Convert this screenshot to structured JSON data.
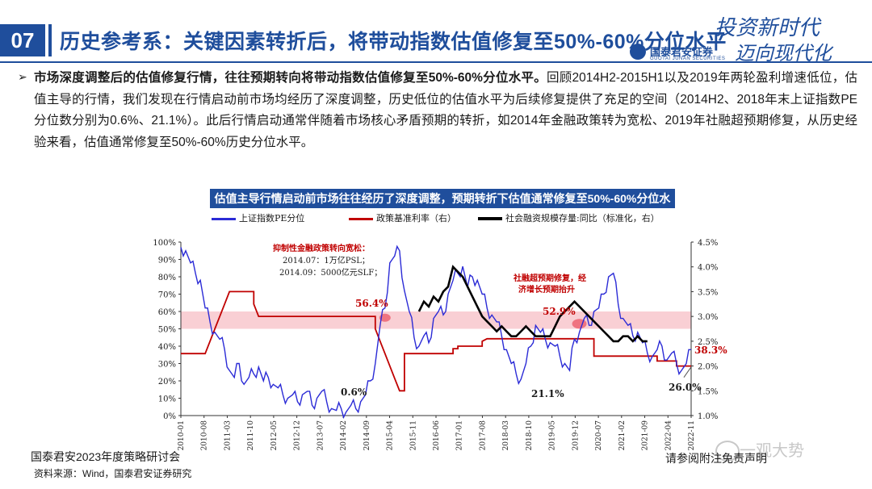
{
  "header": {
    "section_number": "07",
    "title": "历史参考系：关键因素转折后，将带动指数估值修复至50%-60%分位水平",
    "brand_cn": "国泰君安证券",
    "brand_en": "GUOTAI JUNAN SECURITIES",
    "slogan_line1": "投资新时代",
    "slogan_line2": "迈向现代化"
  },
  "bullet": {
    "bold_text": "市场深度调整后的估值修复行情，往往预期转向将带动指数估值修复至50%-60%分位水平。",
    "body_text": "回顾2014H2-2015H1以及2019年两轮盈利增速低位，估值主导的行情，我们发现在行情启动前市场均经历了深度调整，历史低位的估值水平为后续修复提供了充足的空间（2014H2、2018年末上证指数PE分位数分别为0.6%、21.1%）。此后行情启动通常伴随着市场核心矛盾预期的转折，如2014年金融政策转为宽松、2019年社融超预期修复，从历史经验来看，估值通常修复至50%-60%历史分位水平。"
  },
  "chart_data": {
    "type": "line",
    "title": "估值主导行情启动前市场往往经历了深度调整，预期转折下估值通常修复至50%-60%分位水平",
    "legend": [
      "上证指数PE分位",
      "政策基准利率（右）",
      "社会融资规模存量:同比（标准化，右）"
    ],
    "colors": {
      "pe": "#2b2bd6",
      "rate": "#c00000",
      "social": "#000000",
      "band": "#f4a7b0",
      "highlight": "#e8374a"
    },
    "y_left": {
      "min": 0,
      "max": 100,
      "ticks": [
        "0%",
        "10%",
        "20%",
        "30%",
        "40%",
        "50%",
        "60%",
        "70%",
        "80%",
        "90%",
        "100%"
      ]
    },
    "y_right": {
      "min": 1.0,
      "max": 4.5,
      "ticks": [
        "1.0%",
        "1.5%",
        "2.0%",
        "2.5%",
        "3.0%",
        "3.5%",
        "4.0%",
        "4.5%"
      ]
    },
    "x_ticks": [
      "2010-01",
      "2010-08",
      "2011-03",
      "2011-10",
      "2012-05",
      "2012-12",
      "2013-07",
      "2014-02",
      "2014-09",
      "2015-04",
      "2015-11",
      "2016-06",
      "2017-01",
      "2017-08",
      "2018-03",
      "2018-10",
      "2019-05",
      "2019-12",
      "2020-07",
      "2021-02",
      "2021-09",
      "2022-04",
      "2022-11"
    ],
    "band": [
      50,
      60
    ],
    "pe_series": [
      [
        0,
        97
      ],
      [
        2,
        95
      ],
      [
        4,
        88
      ],
      [
        6,
        82
      ],
      [
        8,
        78
      ],
      [
        10,
        62
      ],
      [
        12,
        54
      ],
      [
        14,
        48
      ],
      [
        16,
        44
      ],
      [
        18,
        38
      ],
      [
        20,
        26
      ],
      [
        22,
        22
      ],
      [
        24,
        30
      ],
      [
        26,
        18
      ],
      [
        28,
        22
      ],
      [
        30,
        24
      ],
      [
        32,
        28
      ],
      [
        34,
        20
      ],
      [
        36,
        22
      ],
      [
        38,
        18
      ],
      [
        40,
        16
      ],
      [
        42,
        12
      ],
      [
        44,
        10
      ],
      [
        46,
        12
      ],
      [
        48,
        8
      ],
      [
        50,
        12
      ],
      [
        52,
        14
      ],
      [
        54,
        6
      ],
      [
        56,
        10
      ],
      [
        58,
        14
      ],
      [
        60,
        8
      ],
      [
        62,
        4
      ],
      [
        64,
        3
      ],
      [
        66,
        4
      ],
      [
        68,
        2
      ],
      [
        70,
        6
      ],
      [
        72,
        4
      ],
      [
        74,
        8
      ],
      [
        76,
        12
      ],
      [
        78,
        20
      ],
      [
        80,
        30
      ],
      [
        82,
        52
      ],
      [
        84,
        62
      ],
      [
        86,
        88
      ],
      [
        88,
        92
      ],
      [
        90,
        95
      ],
      [
        92,
        72
      ],
      [
        94,
        60
      ],
      [
        96,
        45
      ],
      [
        98,
        40
      ],
      [
        100,
        46
      ],
      [
        102,
        42
      ],
      [
        104,
        56
      ],
      [
        106,
        60
      ],
      [
        108,
        58
      ],
      [
        110,
        70
      ],
      [
        112,
        78
      ],
      [
        114,
        82
      ],
      [
        116,
        86
      ],
      [
        118,
        74
      ],
      [
        120,
        80
      ],
      [
        122,
        78
      ],
      [
        124,
        70
      ],
      [
        126,
        62
      ],
      [
        128,
        58
      ],
      [
        130,
        54
      ],
      [
        132,
        46
      ],
      [
        134,
        38
      ],
      [
        136,
        30
      ],
      [
        138,
        24
      ],
      [
        140,
        21
      ],
      [
        142,
        30
      ],
      [
        144,
        40
      ],
      [
        146,
        52
      ],
      [
        148,
        48
      ],
      [
        150,
        44
      ],
      [
        152,
        42
      ],
      [
        154,
        40
      ],
      [
        156,
        34
      ],
      [
        158,
        30
      ],
      [
        160,
        26
      ],
      [
        162,
        44
      ],
      [
        164,
        48
      ],
      [
        166,
        56
      ],
      [
        168,
        52
      ],
      [
        170,
        60
      ],
      [
        172,
        62
      ],
      [
        174,
        70
      ],
      [
        176,
        80
      ],
      [
        178,
        82
      ],
      [
        180,
        64
      ],
      [
        182,
        56
      ],
      [
        184,
        52
      ],
      [
        186,
        46
      ],
      [
        188,
        48
      ],
      [
        190,
        42
      ],
      [
        192,
        36
      ],
      [
        194,
        34
      ],
      [
        196,
        38
      ],
      [
        198,
        40
      ],
      [
        200,
        32
      ],
      [
        202,
        36
      ],
      [
        204,
        30
      ],
      [
        206,
        26
      ],
      [
        208,
        30
      ],
      [
        210,
        38
      ]
    ],
    "rate_series": [
      [
        0,
        2.25
      ],
      [
        10,
        2.25
      ],
      [
        12,
        2.5
      ],
      [
        14,
        2.75
      ],
      [
        16,
        3.0
      ],
      [
        18,
        3.25
      ],
      [
        20,
        3.5
      ],
      [
        30,
        3.5
      ],
      [
        30,
        3.25
      ],
      [
        32,
        3.0
      ],
      [
        54,
        3.0
      ],
      [
        56,
        3.0
      ],
      [
        80,
        3.0
      ],
      [
        80,
        2.75
      ],
      [
        82,
        2.5
      ],
      [
        84,
        2.25
      ],
      [
        86,
        2.0
      ],
      [
        88,
        1.75
      ],
      [
        90,
        1.5
      ],
      [
        92,
        1.5
      ],
      [
        92,
        2.25
      ],
      [
        96,
        2.25
      ],
      [
        112,
        2.25
      ],
      [
        112,
        2.35
      ],
      [
        114,
        2.35
      ],
      [
        114,
        2.4
      ],
      [
        124,
        2.4
      ],
      [
        124,
        2.5
      ],
      [
        126,
        2.55
      ],
      [
        170,
        2.55
      ],
      [
        170,
        2.2
      ],
      [
        196,
        2.2
      ],
      [
        196,
        2.1
      ],
      [
        204,
        2.1
      ],
      [
        204,
        2.0
      ],
      [
        210,
        2.0
      ]
    ],
    "social_series": [
      [
        98,
        3.1
      ],
      [
        100,
        3.3
      ],
      [
        102,
        3.2
      ],
      [
        104,
        3.4
      ],
      [
        106,
        3.3
      ],
      [
        108,
        3.5
      ],
      [
        110,
        3.6
      ],
      [
        112,
        4.0
      ],
      [
        114,
        3.9
      ],
      [
        116,
        3.8
      ],
      [
        118,
        3.6
      ],
      [
        120,
        3.4
      ],
      [
        122,
        3.2
      ],
      [
        124,
        3.0
      ],
      [
        126,
        2.9
      ],
      [
        128,
        2.8
      ],
      [
        130,
        2.7
      ],
      [
        132,
        2.8
      ],
      [
        134,
        2.7
      ],
      [
        136,
        2.6
      ],
      [
        138,
        2.6
      ],
      [
        140,
        2.7
      ],
      [
        142,
        2.8
      ],
      [
        144,
        2.7
      ],
      [
        146,
        2.6
      ],
      [
        148,
        2.6
      ],
      [
        150,
        2.6
      ],
      [
        152,
        2.6
      ],
      [
        154,
        2.8
      ],
      [
        156,
        3.0
      ],
      [
        158,
        3.1
      ],
      [
        160,
        3.2
      ],
      [
        162,
        3.3
      ],
      [
        164,
        3.2
      ],
      [
        166,
        3.1
      ],
      [
        168,
        3.0
      ],
      [
        170,
        2.9
      ],
      [
        172,
        2.8
      ],
      [
        174,
        2.7
      ],
      [
        176,
        2.6
      ],
      [
        178,
        2.5
      ],
      [
        180,
        2.5
      ],
      [
        182,
        2.6
      ],
      [
        184,
        2.6
      ],
      [
        186,
        2.5
      ],
      [
        188,
        2.6
      ],
      [
        190,
        2.5
      ],
      [
        192,
        2.5
      ]
    ],
    "annotations": {
      "policy_title": "抑制性金融政策转向宽松：",
      "policy_line1": "2014.07：1万亿PSL；",
      "policy_line2": "2014.09：5000亿元SLF；",
      "social_note_line1": "社融超预期修复，经",
      "social_note_line2": "济增长预期抬升",
      "label_56": "56.4%",
      "label_529": "52.9%",
      "label_06": "0.6%",
      "label_211": "21.1%",
      "label_260": "26.0%",
      "label_383": "38.3%"
    }
  },
  "footer": {
    "event": "国泰君安2023年度策略研讨会",
    "source": "资料来源：Wind，国泰君安证券研究",
    "disclaimer": "请参阅附注免责声明",
    "watermark": "一观大势"
  }
}
